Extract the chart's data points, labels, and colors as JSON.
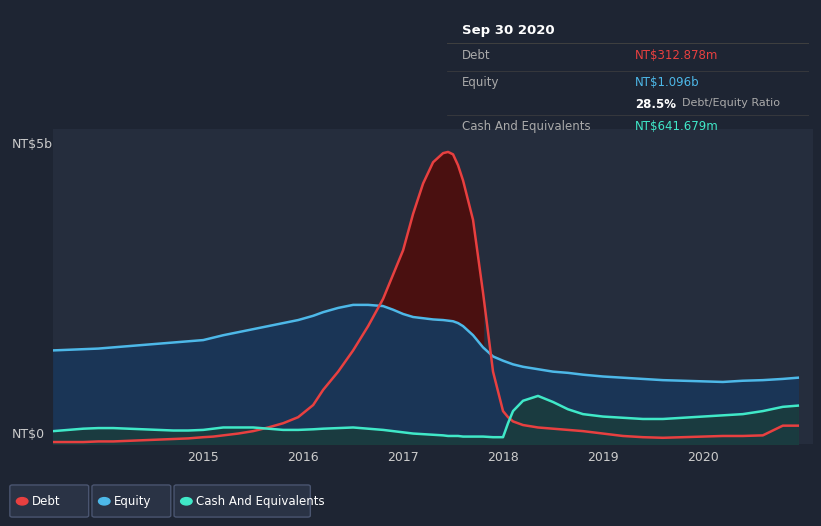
{
  "bg_color": "#1e2533",
  "plot_bg_color": "#252d3d",
  "grid_color": "#3a4560",
  "ylabel_top": "NT$5b",
  "ylabel_bottom": "NT$0",
  "debt_color": "#e84040",
  "equity_color": "#4db8e8",
  "cash_color": "#40e8c8",
  "equity_fill": "#1a3556",
  "cash_fill": "#1a3d3d",
  "debt_over_equity_fill": "#4a1010",
  "tooltip_date": "Sep 30 2020",
  "tooltip_debt_label": "Debt",
  "tooltip_debt_value": "NT$312.878m",
  "tooltip_equity_label": "Equity",
  "tooltip_equity_value": "NT$1.096b",
  "tooltip_ratio_value": "28.5%",
  "tooltip_ratio_label": "Debt/Equity Ratio",
  "tooltip_cash_label": "Cash And Equivalents",
  "tooltip_cash_value": "NT$641.679m",
  "tooltip_bg": "#0d0d0d",
  "tooltip_border": "#404040",
  "tooltip_label_color": "#aaaaaa",
  "tooltip_title_color": "#ffffff",
  "x_ticks": [
    2015,
    2016,
    2017,
    2018,
    2019,
    2020
  ],
  "time": [
    2013.5,
    2013.65,
    2013.8,
    2013.95,
    2014.1,
    2014.25,
    2014.4,
    2014.55,
    2014.7,
    2014.85,
    2015.0,
    2015.1,
    2015.2,
    2015.35,
    2015.5,
    2015.65,
    2015.8,
    2015.95,
    2016.1,
    2016.2,
    2016.35,
    2016.5,
    2016.65,
    2016.8,
    2016.9,
    2017.0,
    2017.1,
    2017.2,
    2017.3,
    2017.4,
    2017.45,
    2017.5,
    2017.55,
    2017.6,
    2017.7,
    2017.8,
    2017.9,
    2018.0,
    2018.05,
    2018.1,
    2018.2,
    2018.35,
    2018.5,
    2018.65,
    2018.8,
    2019.0,
    2019.2,
    2019.4,
    2019.6,
    2019.8,
    2020.0,
    2020.2,
    2020.4,
    2020.6,
    2020.8,
    2020.95
  ],
  "debt": [
    0.04,
    0.04,
    0.04,
    0.05,
    0.05,
    0.06,
    0.07,
    0.08,
    0.09,
    0.1,
    0.12,
    0.13,
    0.15,
    0.18,
    0.22,
    0.28,
    0.35,
    0.45,
    0.65,
    0.9,
    1.2,
    1.55,
    1.95,
    2.4,
    2.8,
    3.2,
    3.8,
    4.3,
    4.65,
    4.8,
    4.82,
    4.78,
    4.6,
    4.35,
    3.7,
    2.5,
    1.2,
    0.55,
    0.45,
    0.38,
    0.32,
    0.28,
    0.26,
    0.24,
    0.22,
    0.18,
    0.14,
    0.12,
    0.11,
    0.12,
    0.13,
    0.14,
    0.14,
    0.15,
    0.31,
    0.31
  ],
  "equity": [
    1.55,
    1.56,
    1.57,
    1.58,
    1.6,
    1.62,
    1.64,
    1.66,
    1.68,
    1.7,
    1.72,
    1.76,
    1.8,
    1.85,
    1.9,
    1.95,
    2.0,
    2.05,
    2.12,
    2.18,
    2.25,
    2.3,
    2.3,
    2.28,
    2.22,
    2.15,
    2.1,
    2.08,
    2.06,
    2.05,
    2.04,
    2.03,
    2.0,
    1.95,
    1.8,
    1.6,
    1.45,
    1.38,
    1.35,
    1.32,
    1.28,
    1.24,
    1.2,
    1.18,
    1.15,
    1.12,
    1.1,
    1.08,
    1.06,
    1.05,
    1.04,
    1.03,
    1.05,
    1.06,
    1.08,
    1.1
  ],
  "cash": [
    0.22,
    0.24,
    0.26,
    0.27,
    0.27,
    0.26,
    0.25,
    0.24,
    0.23,
    0.23,
    0.24,
    0.26,
    0.28,
    0.28,
    0.28,
    0.26,
    0.24,
    0.24,
    0.25,
    0.26,
    0.27,
    0.28,
    0.26,
    0.24,
    0.22,
    0.2,
    0.18,
    0.17,
    0.16,
    0.15,
    0.14,
    0.14,
    0.14,
    0.13,
    0.13,
    0.13,
    0.12,
    0.12,
    0.35,
    0.55,
    0.72,
    0.8,
    0.7,
    0.58,
    0.5,
    0.46,
    0.44,
    0.42,
    0.42,
    0.44,
    0.46,
    0.48,
    0.5,
    0.55,
    0.62,
    0.64
  ],
  "ylim": [
    0,
    5.2
  ],
  "xlim": [
    2013.5,
    2021.1
  ]
}
